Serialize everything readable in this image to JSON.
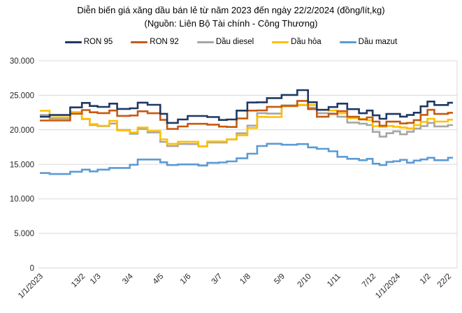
{
  "title": "Diễn biến giá xăng dầu bán lẻ từ năm 2023 đến ngày 22/2/2024 (đồng/lít,kg)",
  "subtitle": "(Nguồn: Liên Bộ Tài chính - Công Thương)",
  "chart_data": {
    "type": "line",
    "step": true,
    "title": "Diễn biến giá xăng dầu bán lẻ từ năm 2023 đến ngày 22/2/2024 (đồng/lít,kg)",
    "subtitle": "(Nguồn: Liên Bộ Tài chính - Công Thương)",
    "unit": "đồng/lít,kg",
    "ylim": [
      0,
      30000
    ],
    "grid": "horizontal",
    "legend_position": "top",
    "y_ticks": [
      {
        "value": 0,
        "label": "0"
      },
      {
        "value": 5000,
        "label": "5.000"
      },
      {
        "value": 10000,
        "label": "10.000"
      },
      {
        "value": 15000,
        "label": "15.000"
      },
      {
        "value": 20000,
        "label": "20.000"
      },
      {
        "value": 25000,
        "label": "25.000"
      },
      {
        "value": 30000,
        "label": "30.000"
      }
    ],
    "x_ticks": [
      {
        "label": "1/1/2023",
        "day": 0
      },
      {
        "label": "13/2",
        "day": 43
      },
      {
        "label": "1/3",
        "day": 59
      },
      {
        "label": "3/4",
        "day": 92
      },
      {
        "label": "4/5",
        "day": 123
      },
      {
        "label": "1/6",
        "day": 151
      },
      {
        "label": "3/7",
        "day": 183
      },
      {
        "label": "1/8",
        "day": 212
      },
      {
        "label": "5/9",
        "day": 247
      },
      {
        "label": "2/10",
        "day": 274
      },
      {
        "label": "1/11",
        "day": 304
      },
      {
        "label": "7/12",
        "day": 340
      },
      {
        "label": "1/1/2024",
        "day": 365
      },
      {
        "label": "1/2",
        "day": 396
      },
      {
        "label": "22/2",
        "day": 417
      }
    ],
    "adjustment_dates": [
      "1/1/2023",
      "11/1",
      "1/2",
      "13/2",
      "21/2",
      "1/3",
      "13/3",
      "21/3",
      "3/4",
      "11/4",
      "21/4",
      "4/5",
      "11/5",
      "22/5",
      "1/6",
      "12/6",
      "21/6",
      "3/7",
      "11/7",
      "21/7",
      "1/8",
      "11/8",
      "21/8",
      "5/9",
      "21/9",
      "2/10",
      "11/10",
      "23/10",
      "1/11",
      "11/11",
      "23/11",
      "1/12",
      "7/12",
      "14/12",
      "21/12",
      "28/12",
      "4/1/2024",
      "11/1",
      "18/1",
      "25/1",
      "1/2",
      "8/2",
      "15/2",
      "22/2"
    ],
    "days": [
      0,
      10,
      31,
      43,
      51,
      59,
      71,
      79,
      92,
      100,
      110,
      123,
      130,
      141,
      151,
      162,
      171,
      183,
      191,
      201,
      212,
      222,
      232,
      247,
      263,
      274,
      283,
      295,
      304,
      314,
      326,
      334,
      340,
      347,
      354,
      361,
      368,
      375,
      382,
      389,
      396,
      403,
      410,
      417
    ],
    "series": [
      {
        "name": "RON 95",
        "color": "#1f3864",
        "values": [
          21900,
          22150,
          23250,
          23900,
          23450,
          23320,
          23800,
          23030,
          23120,
          23940,
          23630,
          22320,
          21000,
          21500,
          22010,
          22010,
          21850,
          21430,
          21500,
          22790,
          23960,
          23990,
          24600,
          25050,
          25750,
          24000,
          22900,
          23300,
          23800,
          23000,
          22400,
          22800,
          22100,
          21600,
          22300,
          22300,
          21920,
          22150,
          22480,
          23400,
          24100,
          23600,
          23600,
          23920
        ]
      },
      {
        "name": "RON 92",
        "color": "#c55a11",
        "values": [
          21350,
          21350,
          22330,
          22870,
          22540,
          22420,
          22800,
          22020,
          22080,
          22680,
          22400,
          21440,
          20130,
          20490,
          20870,
          20870,
          20750,
          20470,
          20420,
          21640,
          22790,
          22820,
          23330,
          23470,
          24190,
          23000,
          21900,
          22300,
          22700,
          21900,
          21500,
          21800,
          21200,
          20600,
          21190,
          21190,
          20920,
          21000,
          21410,
          22170,
          22900,
          22300,
          22300,
          22470
        ]
      },
      {
        "name": "Dầu diesel",
        "color": "#a6a6a6",
        "values": [
          22150,
          21630,
          22520,
          21560,
          20690,
          20550,
          20915,
          19990,
          19430,
          20150,
          19620,
          18250,
          17650,
          17950,
          17940,
          17610,
          18170,
          18170,
          18620,
          19500,
          20610,
          22420,
          22350,
          23540,
          23590,
          23200,
          22400,
          22350,
          21900,
          21060,
          20880,
          20700,
          19700,
          19010,
          19510,
          19780,
          19360,
          19720,
          20190,
          20550,
          21000,
          20500,
          20500,
          20690
        ]
      },
      {
        "name": "Dầu hỏa",
        "color": "#ffc000",
        "values": [
          22760,
          21810,
          22570,
          21590,
          20820,
          20590,
          21300,
          19910,
          19630,
          20340,
          19820,
          18620,
          17970,
          18280,
          18270,
          17610,
          18320,
          18300,
          18610,
          19200,
          20270,
          21880,
          21850,
          23400,
          23620,
          23600,
          22900,
          22800,
          22400,
          21690,
          21580,
          21400,
          20540,
          20450,
          20560,
          20450,
          20330,
          20210,
          20680,
          21150,
          21600,
          21200,
          21200,
          21470
        ]
      },
      {
        "name": "Dầu mazut",
        "color": "#5b9bd5",
        "values": [
          13740,
          13600,
          13930,
          14240,
          13980,
          14240,
          14480,
          14480,
          14940,
          15700,
          15700,
          15300,
          14900,
          15000,
          15000,
          14830,
          15220,
          15280,
          15430,
          15880,
          16540,
          17660,
          17980,
          17840,
          17940,
          17460,
          17250,
          16900,
          16100,
          15800,
          15600,
          15800,
          15100,
          14900,
          15350,
          15450,
          15650,
          15250,
          15550,
          15710,
          15960,
          15600,
          15600,
          15960
        ]
      }
    ],
    "draw_order": [
      2,
      3,
      1,
      0,
      4
    ],
    "grid_color": "#d9d9d9"
  }
}
